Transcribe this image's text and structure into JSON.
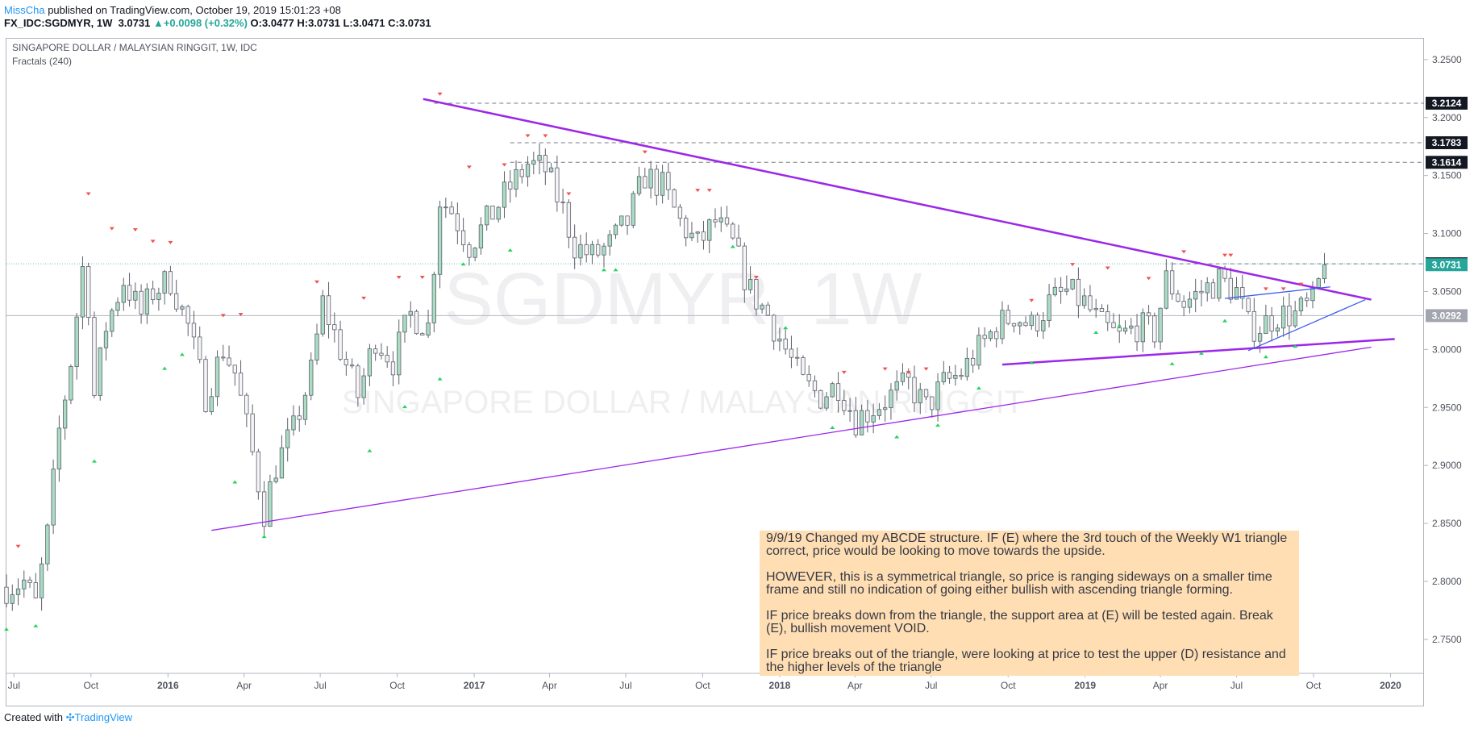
{
  "header": {
    "author": "MissCha",
    "published_text": "published on TradingView.com, October 19, 2019 15:01:23 +08",
    "symbol": "FX_IDC:SGDMYR, 1W",
    "last": "3.0731",
    "change": "+0.0098 (+0.32%)",
    "ohlc_o": "O:3.0477",
    "ohlc_h": "H:3.0731",
    "ohlc_l": "L:3.0471",
    "ohlc_c": "C:3.0731"
  },
  "pane": {
    "title": "SINGAPORE DOLLAR / MALAYSIAN RINGGIT, 1W, IDC",
    "indicator": "Fractals (240)",
    "watermark_symbol": "SGDMYR, 1W",
    "watermark_name": "SINGAPORE DOLLAR / MALAYSIAN RINGGIT"
  },
  "footer": {
    "created_with": "Created with",
    "brand": "TradingView"
  },
  "note": {
    "paragraphs": [
      "9/9/19 Changed my ABCDE structure. IF (E) where the 3rd touch of the Weekly W1 triangle correct, price would be looking to move towards the upside.",
      "HOWEVER, this is a symmetrical triangle, so price  is ranging sideways on a smaller time frame and still no indication of going either bullish with ascending triangle forming.",
      "IF price breaks down from the triangle, the support area at (E) will be tested again. Break (E), bullish movement VOID.",
      "IF price breaks out of the triangle, were looking at price to test the upper (D) resistance and the higher levels of the triangle"
    ]
  },
  "colors": {
    "up": "#26a69a",
    "up_fill": "#a9dcc3",
    "down_fill": "#f5f5f7",
    "candle_border": "#5d606b",
    "fractal_up": "#26d45b",
    "fractal_down": "#ef5350",
    "triangle": "#9c27e8",
    "small_triangle": "#3d5af1",
    "author": "#2196f3",
    "note_bg": "#ffdeb3",
    "last_price_label": "#26a69a"
  },
  "chart_data": {
    "type": "candlestick",
    "title": "SINGAPORE DOLLAR / MALAYSIAN RINGGIT, 1W, IDC",
    "y_axis": {
      "range": [
        2.72,
        3.268
      ],
      "ticks": [
        "3.2500",
        "3.2000",
        "3.1500",
        "3.1000",
        "3.0500",
        "3.0000",
        "2.9500",
        "2.9000",
        "2.8500",
        "2.8000",
        "2.7500"
      ]
    },
    "x_axis": {
      "range": [
        "2015-06-22",
        "2020-02-10"
      ],
      "tick_dates": [
        "2015-07-01",
        "2015-10-01",
        "2016-01-01",
        "2016-04-01",
        "2016-07-01",
        "2016-10-01",
        "2017-01-01",
        "2017-04-01",
        "2017-07-01",
        "2017-10-01",
        "2018-01-01",
        "2018-04-01",
        "2018-07-01",
        "2018-10-01",
        "2019-01-01",
        "2019-04-01",
        "2019-07-01",
        "2019-10-01",
        "2020-01-01"
      ],
      "tick_labels": [
        "Jul",
        "Oct",
        "2016",
        "Apr",
        "Jul",
        "Oct",
        "2017",
        "Apr",
        "Jul",
        "Oct",
        "2018",
        "Apr",
        "Jul",
        "Oct",
        "2019",
        "Apr",
        "Jul",
        "Oct",
        "2020"
      ]
    },
    "price_path_closes": [
      {
        "date": "2015-06-22",
        "close": 2.795
      },
      {
        "date": "2015-07-13",
        "close": 2.8
      },
      {
        "date": "2015-07-27",
        "close": 2.78
      },
      {
        "date": "2015-08-10",
        "close": 2.84
      },
      {
        "date": "2015-08-24",
        "close": 2.93
      },
      {
        "date": "2015-09-07",
        "close": 2.99
      },
      {
        "date": "2015-09-21",
        "close": 3.07
      },
      {
        "date": "2015-09-28",
        "close": 3.04
      },
      {
        "date": "2015-10-05",
        "close": 2.96
      },
      {
        "date": "2015-10-19",
        "close": 3.02
      },
      {
        "date": "2015-11-09",
        "close": 3.06
      },
      {
        "date": "2015-11-30",
        "close": 3.03
      },
      {
        "date": "2015-12-14",
        "close": 3.05
      },
      {
        "date": "2016-01-04",
        "close": 3.06
      },
      {
        "date": "2016-01-25",
        "close": 3.02
      },
      {
        "date": "2016-02-15",
        "close": 2.96
      },
      {
        "date": "2016-03-07",
        "close": 3.0
      },
      {
        "date": "2016-03-21",
        "close": 2.98
      },
      {
        "date": "2016-04-11",
        "close": 2.91
      },
      {
        "date": "2016-04-25",
        "close": 2.86
      },
      {
        "date": "2016-05-09",
        "close": 2.9
      },
      {
        "date": "2016-05-30",
        "close": 2.93
      },
      {
        "date": "2016-06-20",
        "close": 2.98
      },
      {
        "date": "2016-07-04",
        "close": 3.04
      },
      {
        "date": "2016-07-25",
        "close": 3.0
      },
      {
        "date": "2016-08-15",
        "close": 2.96
      },
      {
        "date": "2016-09-05",
        "close": 3.01
      },
      {
        "date": "2016-09-26",
        "close": 2.99
      },
      {
        "date": "2016-10-17",
        "close": 3.03
      },
      {
        "date": "2016-11-07",
        "close": 3.02
      },
      {
        "date": "2016-11-21",
        "close": 3.13
      },
      {
        "date": "2016-12-05",
        "close": 3.12
      },
      {
        "date": "2016-12-26",
        "close": 3.09
      },
      {
        "date": "2017-01-16",
        "close": 3.11
      },
      {
        "date": "2017-02-13",
        "close": 3.14
      },
      {
        "date": "2017-03-06",
        "close": 3.16
      },
      {
        "date": "2017-03-27",
        "close": 3.155
      },
      {
        "date": "2017-04-17",
        "close": 3.12
      },
      {
        "date": "2017-05-01",
        "close": 3.09
      },
      {
        "date": "2017-05-22",
        "close": 3.08
      },
      {
        "date": "2017-06-12",
        "close": 3.09
      },
      {
        "date": "2017-07-03",
        "close": 3.11
      },
      {
        "date": "2017-07-24",
        "close": 3.15
      },
      {
        "date": "2017-08-14",
        "close": 3.14
      },
      {
        "date": "2017-09-04",
        "close": 3.11
      },
      {
        "date": "2017-09-25",
        "close": 3.09
      },
      {
        "date": "2017-10-16",
        "close": 3.11
      },
      {
        "date": "2017-11-06",
        "close": 3.09
      },
      {
        "date": "2017-11-27",
        "close": 3.05
      },
      {
        "date": "2017-12-18",
        "close": 3.03
      },
      {
        "date": "2018-01-08",
        "close": 3.0
      },
      {
        "date": "2018-01-29",
        "close": 2.97
      },
      {
        "date": "2018-02-19",
        "close": 2.96
      },
      {
        "date": "2018-03-12",
        "close": 2.97
      },
      {
        "date": "2018-04-02",
        "close": 2.94
      },
      {
        "date": "2018-04-23",
        "close": 2.95
      },
      {
        "date": "2018-05-14",
        "close": 2.96
      },
      {
        "date": "2018-06-04",
        "close": 2.97
      },
      {
        "date": "2018-06-25",
        "close": 2.95
      },
      {
        "date": "2018-07-16",
        "close": 2.97
      },
      {
        "date": "2018-08-06",
        "close": 2.98
      },
      {
        "date": "2018-08-27",
        "close": 3.0
      },
      {
        "date": "2018-09-17",
        "close": 3.02
      },
      {
        "date": "2018-10-08",
        "close": 3.03
      },
      {
        "date": "2018-10-29",
        "close": 3.02
      },
      {
        "date": "2018-11-19",
        "close": 3.04
      },
      {
        "date": "2018-12-10",
        "close": 3.05
      },
      {
        "date": "2018-12-31",
        "close": 3.04
      },
      {
        "date": "2019-01-21",
        "close": 3.02
      },
      {
        "date": "2019-02-11",
        "close": 3.01
      },
      {
        "date": "2019-03-04",
        "close": 3.02
      },
      {
        "date": "2019-03-25",
        "close": 3.015
      },
      {
        "date": "2019-04-08",
        "close": 3.06
      },
      {
        "date": "2019-04-29",
        "close": 3.04
      },
      {
        "date": "2019-05-20",
        "close": 3.05
      },
      {
        "date": "2019-06-10",
        "close": 3.06
      },
      {
        "date": "2019-07-01",
        "close": 3.05
      },
      {
        "date": "2019-07-15",
        "close": 3.02
      },
      {
        "date": "2019-07-29",
        "close": 3.02
      },
      {
        "date": "2019-08-19",
        "close": 3.03
      },
      {
        "date": "2019-09-09",
        "close": 3.03
      },
      {
        "date": "2019-09-30",
        "close": 3.04
      },
      {
        "date": "2019-10-14",
        "close": 3.0731
      }
    ],
    "price_lines": [
      {
        "label": "3.2124",
        "value": 3.2124,
        "style": "dashed"
      },
      {
        "label": "3.1783",
        "value": 3.1783,
        "style": "dashed"
      },
      {
        "label": "3.1614",
        "value": 3.1614,
        "style": "dashed"
      },
      {
        "label": "3.0739",
        "value": 3.0739,
        "style": "dashed"
      },
      {
        "label": "3.0731",
        "value": 3.0731,
        "style": "last"
      },
      {
        "label": "3.0292",
        "value": 3.0292,
        "style": "solid"
      }
    ],
    "trendlines": [
      {
        "name": "upper",
        "points": [
          {
            "date": "2016-11-01",
            "value": 3.216
          },
          {
            "date": "2019-12-09",
            "value": 3.043
          }
        ]
      },
      {
        "name": "lower",
        "points": [
          {
            "date": "2016-02-22",
            "value": 2.844
          },
          {
            "date": "2019-12-09",
            "value": 3.002
          }
        ]
      },
      {
        "name": "support",
        "points": [
          {
            "date": "2018-09-24",
            "value": 2.987
          },
          {
            "date": "2020-01-06",
            "value": 3.009
          }
        ]
      },
      {
        "name": "small-upper",
        "points": [
          {
            "date": "2019-06-17",
            "value": 3.044
          },
          {
            "date": "2019-10-21",
            "value": 3.054
          }
        ]
      },
      {
        "name": "small-lower",
        "points": [
          {
            "date": "2019-07-15",
            "value": 2.999
          },
          {
            "date": "2019-12-02",
            "value": 3.043
          }
        ]
      }
    ],
    "fractals_down": [
      {
        "date": "2015-07-06",
        "value": 2.826
      },
      {
        "date": "2015-09-28",
        "value": 3.13
      },
      {
        "date": "2015-10-26",
        "value": 3.1
      },
      {
        "date": "2015-11-23",
        "value": 3.099
      },
      {
        "date": "2015-12-14",
        "value": 3.089
      },
      {
        "date": "2016-01-04",
        "value": 3.088
      },
      {
        "date": "2016-03-07",
        "value": 3.025
      },
      {
        "date": "2016-03-28",
        "value": 3.026
      },
      {
        "date": "2016-06-27",
        "value": 3.054
      },
      {
        "date": "2016-08-22",
        "value": 3.04
      },
      {
        "date": "2016-10-03",
        "value": 3.058
      },
      {
        "date": "2016-10-31",
        "value": 3.058
      },
      {
        "date": "2016-11-21",
        "value": 3.216
      },
      {
        "date": "2016-12-26",
        "value": 3.153
      },
      {
        "date": "2017-02-06",
        "value": 3.155
      },
      {
        "date": "2017-03-06",
        "value": 3.18
      },
      {
        "date": "2017-03-27",
        "value": 3.18
      },
      {
        "date": "2017-04-24",
        "value": 3.13
      },
      {
        "date": "2017-07-24",
        "value": 3.166
      },
      {
        "date": "2017-09-25",
        "value": 3.133
      },
      {
        "date": "2017-10-09",
        "value": 3.133
      },
      {
        "date": "2017-12-04",
        "value": 3.058
      },
      {
        "date": "2018-03-19",
        "value": 2.976
      },
      {
        "date": "2018-05-07",
        "value": 2.979
      },
      {
        "date": "2018-06-04",
        "value": 2.976
      },
      {
        "date": "2018-06-25",
        "value": 2.979
      },
      {
        "date": "2018-10-29",
        "value": 3.038
      },
      {
        "date": "2018-12-17",
        "value": 3.069
      },
      {
        "date": "2019-01-28",
        "value": 3.066
      },
      {
        "date": "2019-03-18",
        "value": 3.057
      },
      {
        "date": "2019-04-29",
        "value": 3.08
      },
      {
        "date": "2019-06-17",
        "value": 3.077
      },
      {
        "date": "2019-06-24",
        "value": 3.077
      },
      {
        "date": "2019-08-05",
        "value": 3.048
      },
      {
        "date": "2019-08-26",
        "value": 3.048
      },
      {
        "date": "2019-09-16",
        "value": 3.052
      }
    ],
    "fractals_up": [
      {
        "date": "2015-06-22",
        "value": 2.763
      },
      {
        "date": "2015-07-27",
        "value": 2.766
      },
      {
        "date": "2015-10-05",
        "value": 2.908
      },
      {
        "date": "2015-12-28",
        "value": 2.988
      },
      {
        "date": "2016-01-18",
        "value": 3.0
      },
      {
        "date": "2016-03-21",
        "value": 2.89
      },
      {
        "date": "2016-04-25",
        "value": 2.843
      },
      {
        "date": "2016-08-29",
        "value": 2.917
      },
      {
        "date": "2016-10-10",
        "value": 2.955
      },
      {
        "date": "2016-11-21",
        "value": 2.979
      },
      {
        "date": "2016-12-19",
        "value": 3.078
      },
      {
        "date": "2017-02-13",
        "value": 3.09
      },
      {
        "date": "2017-06-05",
        "value": 3.073
      },
      {
        "date": "2017-06-19",
        "value": 3.073
      },
      {
        "date": "2017-11-06",
        "value": 3.093
      },
      {
        "date": "2018-01-08",
        "value": 3.023
      },
      {
        "date": "2018-03-05",
        "value": 2.937
      },
      {
        "date": "2018-05-21",
        "value": 2.929
      },
      {
        "date": "2018-07-09",
        "value": 2.939
      },
      {
        "date": "2018-08-27",
        "value": 2.971
      },
      {
        "date": "2018-10-29",
        "value": 2.993
      },
      {
        "date": "2019-01-14",
        "value": 3.019
      },
      {
        "date": "2019-02-11",
        "value": 3.025
      },
      {
        "date": "2019-04-15",
        "value": 2.992
      },
      {
        "date": "2019-05-20",
        "value": 3.001
      },
      {
        "date": "2019-06-17",
        "value": 3.029
      },
      {
        "date": "2019-08-05",
        "value": 2.998
      },
      {
        "date": "2019-09-09",
        "value": 3.007
      }
    ]
  }
}
